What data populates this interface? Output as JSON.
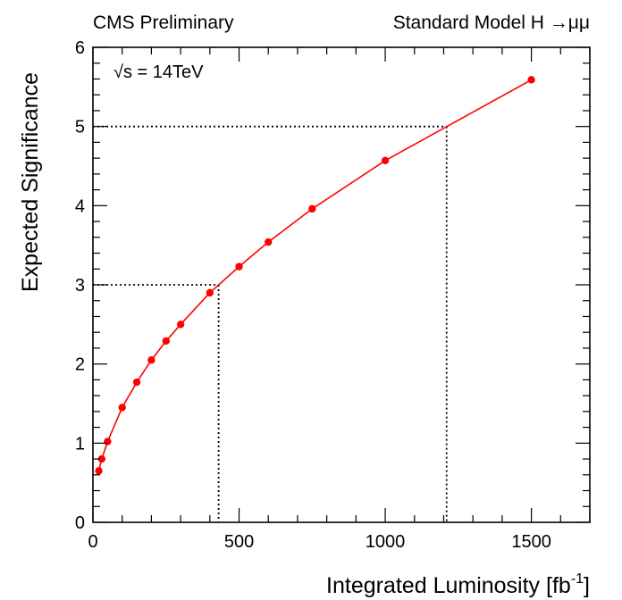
{
  "header": {
    "left": "CMS Preliminary",
    "right": "Standard Model H →μμ"
  },
  "chart_data": {
    "type": "line",
    "ylabel": "Expected Significance",
    "xlabel_main": "Integrated Luminosity [fb",
    "xlabel_sup": "-1",
    "xlabel_end": "]",
    "annotation": "√s = 14TeV",
    "xlim": [
      0,
      1700
    ],
    "ylim": [
      0,
      6
    ],
    "x_ticks": [
      0,
      500,
      1000,
      1500
    ],
    "y_ticks": [
      0,
      1,
      2,
      3,
      4,
      5,
      6
    ],
    "series": [
      {
        "color": "#ff0000",
        "x": [
          20,
          30,
          50,
          100,
          150,
          200,
          250,
          300,
          400,
          500,
          600,
          750,
          1000,
          1500
        ],
        "y": [
          0.65,
          0.8,
          1.02,
          1.45,
          1.77,
          2.05,
          2.29,
          2.5,
          2.9,
          3.23,
          3.54,
          3.96,
          4.57,
          5.59
        ]
      }
    ],
    "reference_lines": [
      {
        "x": 430,
        "y": 3.0
      },
      {
        "x": 1210,
        "y": 5.0
      }
    ],
    "grid": false
  }
}
